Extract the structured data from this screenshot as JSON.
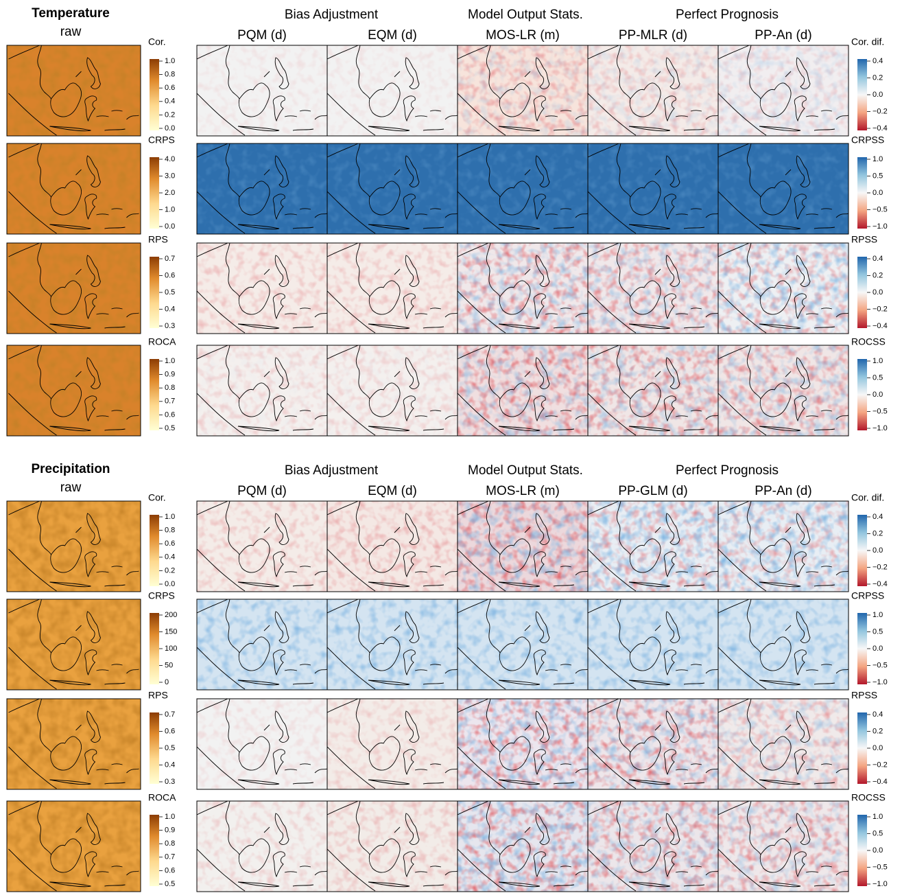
{
  "blocks": [
    {
      "title": "Temperature",
      "subtitle": "raw",
      "groups": [
        "Bias Adjustment",
        "Model Output Stats.",
        "Perfect Prognosis"
      ],
      "methods": [
        "PQM (d)",
        "EQM (d)",
        "MOS-LR (m)",
        "PP-MLR (d)",
        "PP-An (d)"
      ],
      "rows": [
        {
          "raw_label": "Cor.",
          "raw_ticks": [
            "1.0",
            "0.8",
            "0.6",
            "0.4",
            "0.2",
            "0.0"
          ],
          "skill_label": "Cor. dif.",
          "skill_ticks": [
            "0.4",
            "0.2",
            "0.0",
            "−0.2",
            "−0.4"
          ]
        },
        {
          "raw_label": "CRPS",
          "raw_ticks": [
            "4.0",
            "3.0",
            "2.0",
            "1.0",
            "0.0"
          ],
          "skill_label": "CRPSS",
          "skill_ticks": [
            "1.0",
            "0.5",
            "0.0",
            "−0.5",
            "−1.0"
          ]
        },
        {
          "raw_label": "RPS",
          "raw_ticks": [
            "0.7",
            "0.6",
            "0.5",
            "0.4",
            "0.3"
          ],
          "skill_label": "RPSS",
          "skill_ticks": [
            "0.4",
            "0.2",
            "0.0",
            "−0.2",
            "−0.4"
          ]
        },
        {
          "raw_label": "ROCA",
          "raw_ticks": [
            "1.0",
            "0.9",
            "0.8",
            "0.7",
            "0.6",
            "0.5"
          ],
          "skill_label": "ROCSS",
          "skill_ticks": [
            "1.0",
            "0.5",
            "0.0",
            "−0.5",
            "−1.0"
          ]
        }
      ]
    },
    {
      "title": "Precipitation",
      "subtitle": "raw",
      "groups": [
        "Bias Adjustment",
        "Model Output Stats.",
        "Perfect Prognosis"
      ],
      "methods": [
        "PQM (d)",
        "EQM (d)",
        "MOS-LR (m)",
        "PP-GLM (d)",
        "PP-An (d)"
      ],
      "rows": [
        {
          "raw_label": "Cor.",
          "raw_ticks": [
            "1.0",
            "0.8",
            "0.6",
            "0.4",
            "0.2",
            "0.0"
          ],
          "skill_label": "Cor. dif.",
          "skill_ticks": [
            "0.4",
            "0.2",
            "0.0",
            "−0.2",
            "−0.4"
          ]
        },
        {
          "raw_label": "CRPS",
          "raw_ticks": [
            "200",
            "150",
            "100",
            "50",
            "0"
          ],
          "skill_label": "CRPSS",
          "skill_ticks": [
            "1.0",
            "0.5",
            "0.0",
            "−0.5",
            "−1.0"
          ]
        },
        {
          "raw_label": "RPS",
          "raw_ticks": [
            "0.7",
            "0.6",
            "0.5",
            "0.4",
            "0.3"
          ],
          "skill_label": "RPSS",
          "skill_ticks": [
            "0.4",
            "0.2",
            "0.0",
            "−0.2",
            "−0.4"
          ]
        },
        {
          "raw_label": "ROCA",
          "raw_ticks": [
            "1.0",
            "0.9",
            "0.8",
            "0.7",
            "0.6",
            "0.5"
          ],
          "skill_label": "ROCSS",
          "skill_ticks": [
            "1.0",
            "0.5",
            "0.0",
            "−0.5",
            "−1.0"
          ]
        }
      ]
    }
  ]
}
